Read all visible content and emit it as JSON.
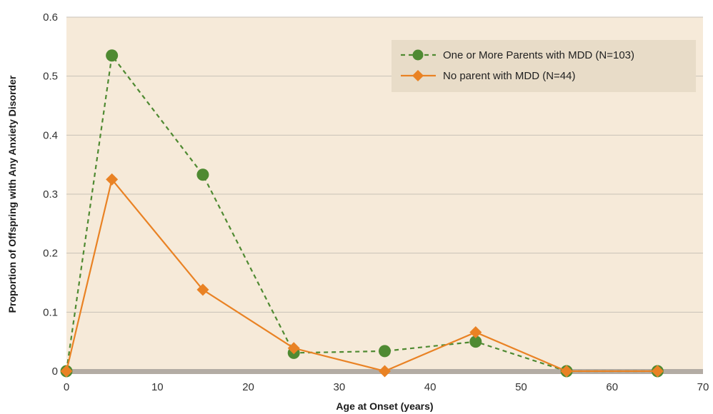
{
  "chart_data": {
    "type": "line",
    "xlabel": "Age at Onset (years)",
    "ylabel": "Proportion of Offspring with Any Anxiety Disorder",
    "xlim": [
      0,
      70
    ],
    "ylim": [
      0,
      0.6
    ],
    "xticks": [
      0,
      10,
      20,
      30,
      40,
      50,
      60,
      70
    ],
    "xtick_labels": [
      "0",
      "10",
      "20",
      "30",
      "40",
      "50",
      "60",
      "70"
    ],
    "yticks": [
      0,
      0.1,
      0.2,
      0.3,
      0.4,
      0.5,
      0.6
    ],
    "ytick_labels": [
      "0",
      "0.1",
      "0.2",
      "0.3",
      "0.4",
      "0.5",
      "0.6"
    ],
    "grid": "horizontal",
    "legend_position": "top-right",
    "series": [
      {
        "name": "One or More Parents with MDD (N=103)",
        "color": "#4f8a32",
        "line_style": "dashed",
        "marker": "circle",
        "x": [
          0,
          5,
          15,
          25,
          35,
          45,
          55,
          65
        ],
        "y": [
          0,
          0.535,
          0.333,
          0.031,
          0.034,
          0.05,
          0,
          0
        ]
      },
      {
        "name": "No parent with MDD (N=44)",
        "color": "#e98224",
        "line_style": "solid",
        "marker": "diamond",
        "x": [
          0,
          5,
          15,
          25,
          35,
          45,
          55,
          65
        ],
        "y": [
          0,
          0.325,
          0.138,
          0.039,
          0,
          0.066,
          0,
          0
        ]
      }
    ]
  },
  "colors": {
    "plot_background": "#f6ead9",
    "gridline": "#c8c2b8",
    "baseline": "#b3aca4",
    "legend_background": "#e8dcc8"
  }
}
